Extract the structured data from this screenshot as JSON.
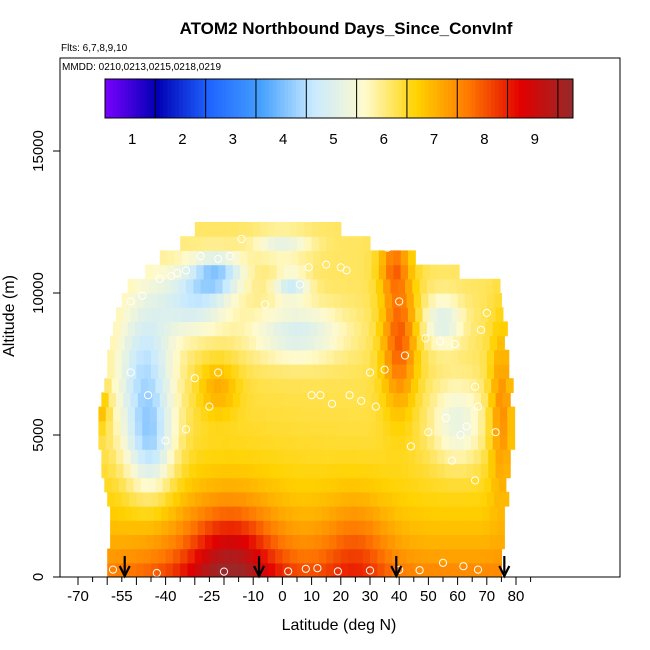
{
  "chart_data": {
    "type": "heatmap",
    "title": "ATOM2 Northbound Days_Since_ConvInf",
    "flights_text": "Flts: 6,7,8,9,10",
    "dates_text": "MMDD: 0210,0213,0215,0218,0219",
    "xlabel": "Latitude (deg N)",
    "ylabel": "Altitude (m)",
    "xlim": [
      -70,
      85
    ],
    "ylim": [
      0,
      18000
    ],
    "x_ticks": [
      -70,
      -55,
      -40,
      -25,
      -10,
      0,
      10,
      20,
      30,
      40,
      50,
      60,
      70,
      80
    ],
    "y_ticks": [
      0,
      5000,
      10000,
      15000
    ],
    "colorbar": {
      "ticks": [
        1,
        2,
        3,
        4,
        5,
        6,
        7,
        8,
        9
      ],
      "range": [
        0.5,
        9.8
      ],
      "colors": [
        "#7a00ff",
        "#0000b4",
        "#1e64ff",
        "#46a0ff",
        "#c8eaff",
        "#fffacc",
        "#ffd200",
        "#ff7800",
        "#e10000",
        "#962a2a"
      ]
    },
    "arrows_lat": [
      -54,
      -8,
      39,
      76
    ],
    "grid": false,
    "legend": "top",
    "profile": {
      "alt_levels": [
        0,
        500,
        1000,
        1500,
        2000,
        2500,
        3000,
        3500,
        4000,
        4500,
        5000,
        5500,
        6000,
        6500,
        7000,
        7500,
        8000,
        8500,
        9000,
        9500,
        10000,
        10500,
        11000,
        11500,
        12000
      ],
      "lat_min": [
        -60,
        -60,
        -59,
        -59,
        -59,
        -60,
        -61,
        -62,
        -62,
        -63,
        -63,
        -63,
        -62,
        -61,
        -60,
        -60,
        -59,
        -58,
        -57,
        -55,
        -53,
        -47,
        -42,
        -35,
        -30
      ],
      "lat_max": [
        74,
        74,
        74,
        75,
        75,
        76,
        76,
        77,
        77,
        78,
        79,
        79,
        78,
        78,
        77,
        77,
        76,
        75,
        75,
        74,
        73,
        60,
        45,
        30,
        20
      ]
    },
    "sample_points": [
      [
        -58,
        260
      ],
      [
        -43,
        140
      ],
      [
        -20,
        190
      ],
      [
        2,
        200
      ],
      [
        8,
        290
      ],
      [
        12,
        310
      ],
      [
        19,
        200
      ],
      [
        30,
        230
      ],
      [
        40,
        250
      ],
      [
        47,
        240
      ],
      [
        55,
        500
      ],
      [
        62,
        380
      ],
      [
        67,
        260
      ],
      [
        -52,
        7200
      ],
      [
        -46,
        6400
      ],
      [
        -40,
        4800
      ],
      [
        -33,
        5200
      ],
      [
        -30,
        7000
      ],
      [
        -22,
        7200
      ],
      [
        -25,
        6000
      ],
      [
        -6,
        9600
      ],
      [
        6,
        10300
      ],
      [
        9,
        10900
      ],
      [
        15,
        11000
      ],
      [
        20,
        10900
      ],
      [
        22,
        10800
      ],
      [
        36,
        11600
      ],
      [
        -52,
        9700
      ],
      [
        -48,
        9900
      ],
      [
        -42,
        10500
      ],
      [
        -38,
        10600
      ],
      [
        -36,
        10700
      ],
      [
        -33,
        10800
      ],
      [
        -28,
        11300
      ],
      [
        -22,
        11200
      ],
      [
        -18,
        11300
      ],
      [
        -14,
        11900
      ],
      [
        10,
        6400
      ],
      [
        13,
        6400
      ],
      [
        17,
        6100
      ],
      [
        23,
        6400
      ],
      [
        27,
        6200
      ],
      [
        32,
        6000
      ],
      [
        35,
        7300
      ],
      [
        44,
        4600
      ],
      [
        49,
        8400
      ],
      [
        54,
        8300
      ],
      [
        59,
        8200
      ],
      [
        61,
        5000
      ],
      [
        63,
        5300
      ],
      [
        66,
        6700
      ],
      [
        67,
        6000
      ],
      [
        73,
        5100
      ],
      [
        70,
        9300
      ],
      [
        68,
        8700
      ],
      [
        58,
        4100
      ],
      [
        50,
        5100
      ],
      [
        30,
        7200
      ],
      [
        40,
        9700
      ],
      [
        42,
        7800
      ],
      [
        56,
        5600
      ],
      [
        66,
        3400
      ]
    ]
  }
}
